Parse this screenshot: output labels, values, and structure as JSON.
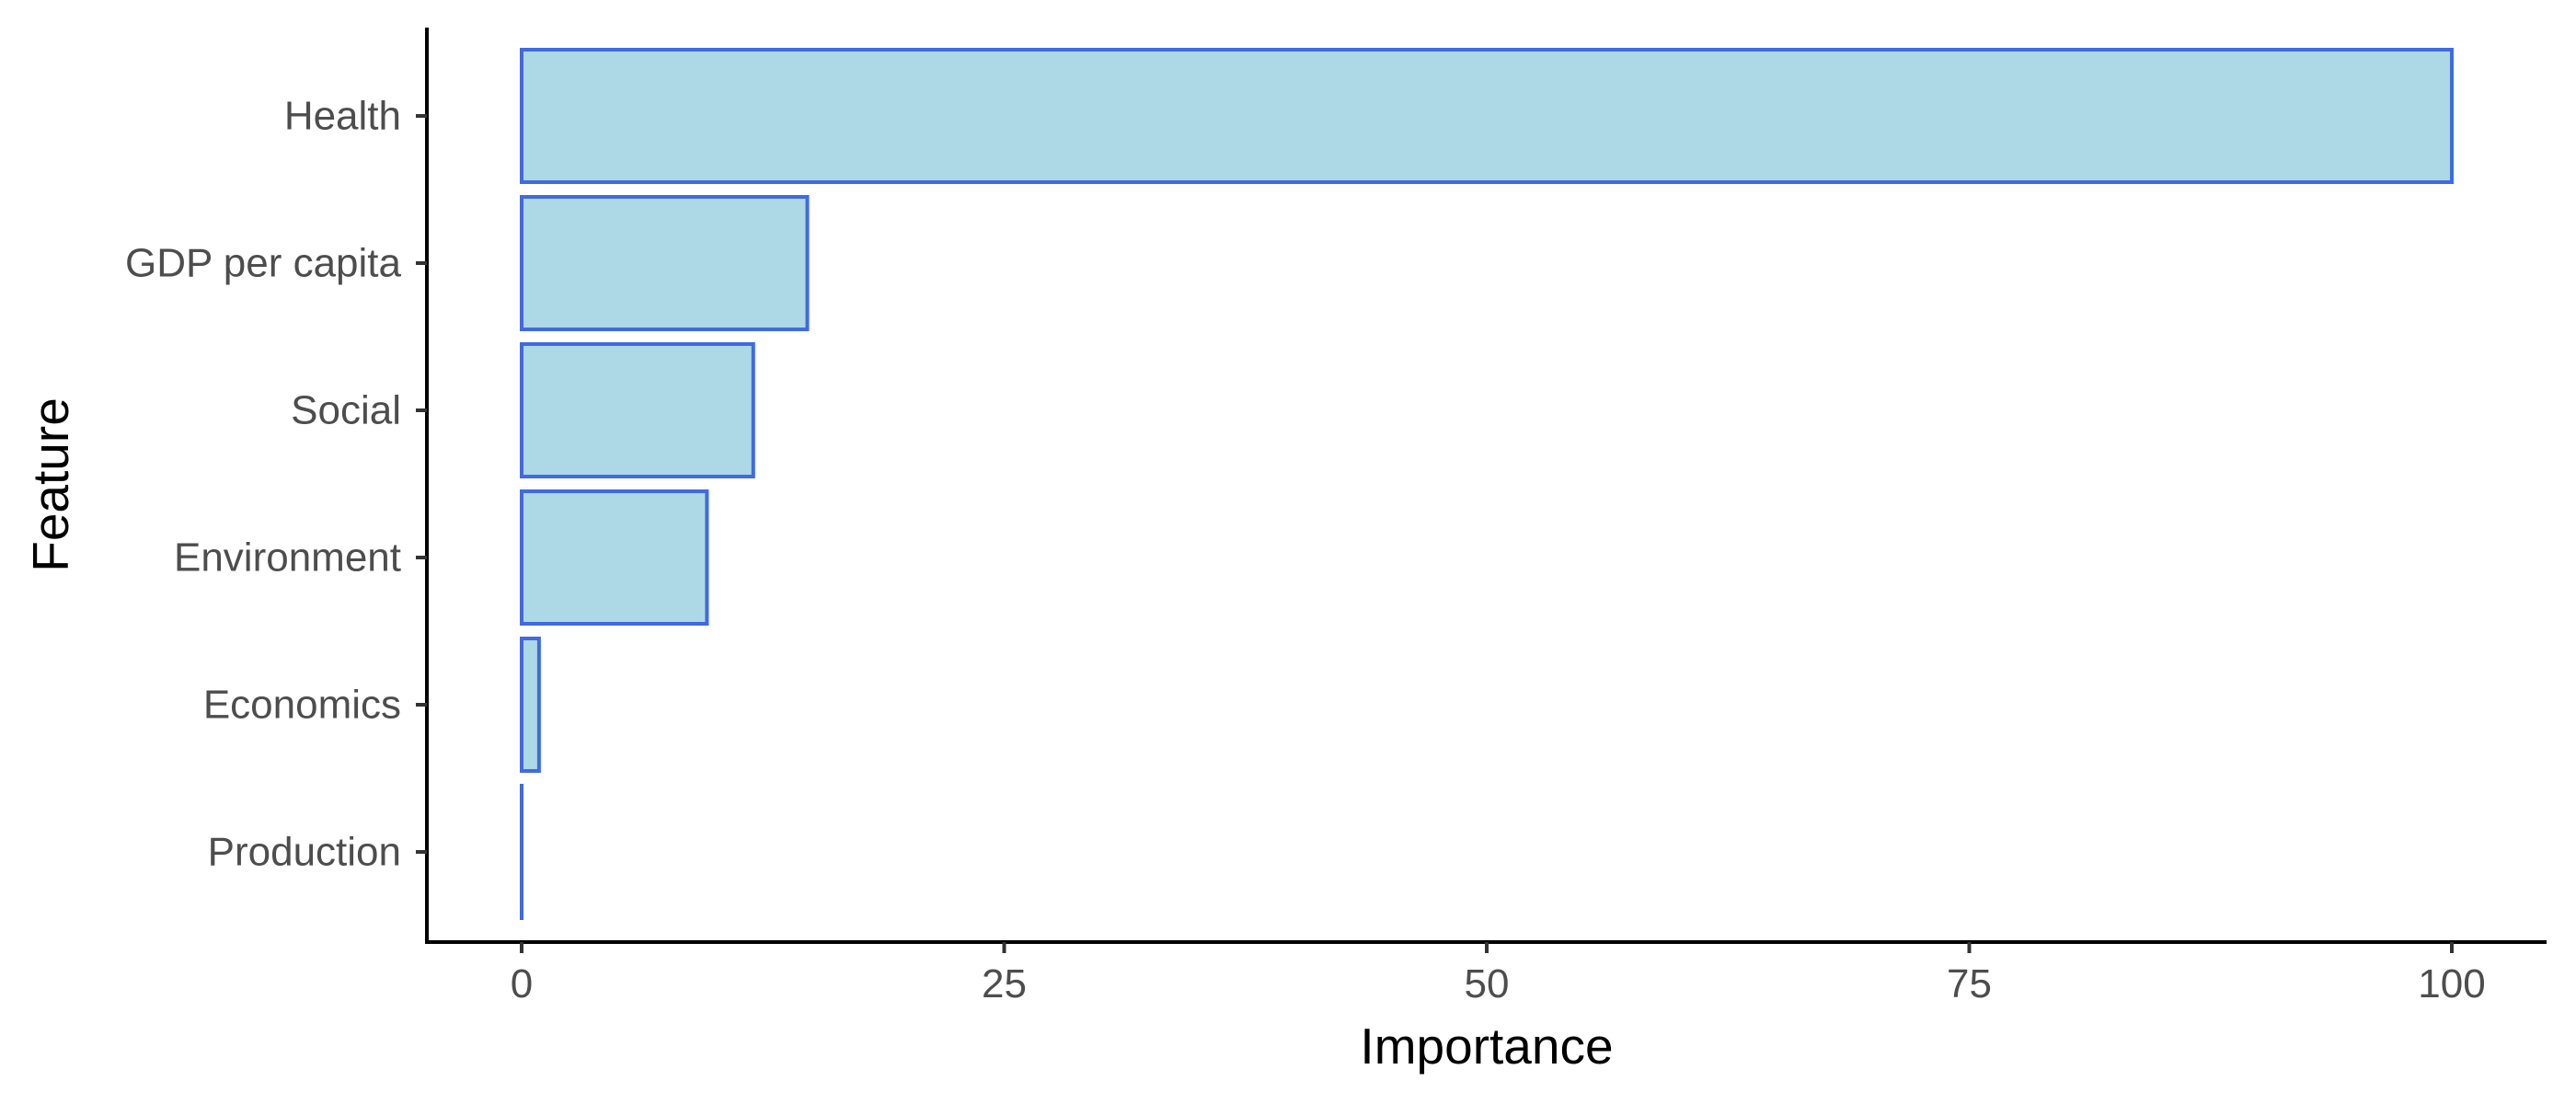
{
  "chart_data": {
    "type": "bar",
    "orientation": "horizontal",
    "categories": [
      "Health",
      "GDP per capita",
      "Social",
      "Environment",
      "Economics",
      "Production"
    ],
    "values": [
      100,
      14.8,
      12,
      9.6,
      0.9,
      0
    ],
    "xlabel": "Importance",
    "ylabel": "Feature",
    "xlim": [
      -5,
      105
    ],
    "xticks": [
      0,
      25,
      50,
      75,
      100
    ],
    "grid": false,
    "legend": "none",
    "colors": {
      "bar_fill": "#ADD8E6",
      "bar_stroke": "#4169E1"
    }
  }
}
